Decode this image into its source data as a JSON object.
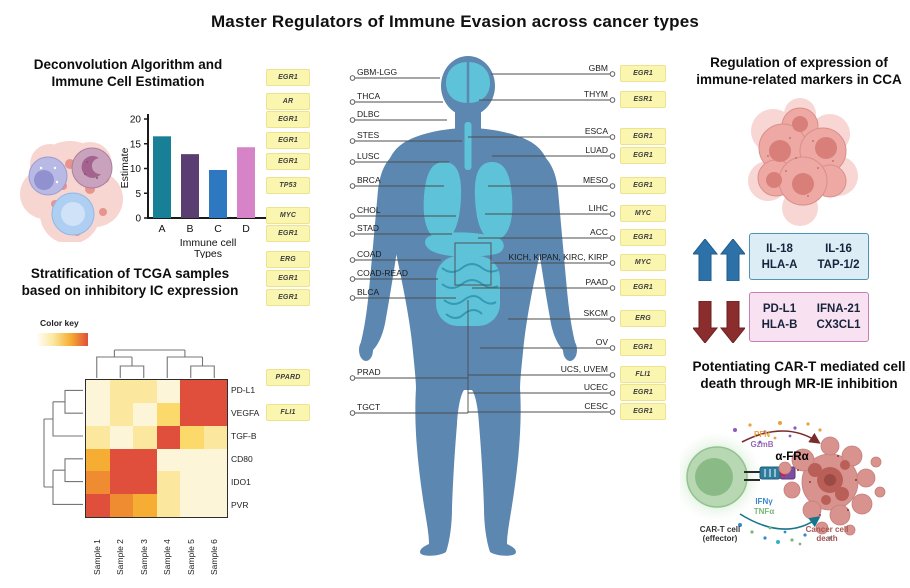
{
  "title": "Master Regulators of Immune Evasion across cancer types",
  "deconvolution": {
    "heading_line1": "Deconvolution Algorithm and",
    "heading_line2": "Immune Cell Estimation"
  },
  "stratification": {
    "heading_line1": "Stratification of TCGA samples",
    "heading_line2": "based on inhibitory IC expression",
    "color_key_label": "Color key"
  },
  "cca_panel": {
    "heading_line1": "Regulation of expression of",
    "heading_line2": "immune-related markers in CCA",
    "up_markers": [
      "IL-18",
      "IL-16",
      "HLA-A",
      "TAP-1/2"
    ],
    "down_markers": [
      "PD-L1",
      "IFNA-21",
      "HLA-B",
      "CX3CL1"
    ]
  },
  "cart_panel": {
    "heading_line1": "Potentiating CAR-T mediated cell",
    "heading_line2": "death through MR-IE inhibition",
    "labels": {
      "pfn": "PFN",
      "gzmb": "GzmB",
      "afra": "α-FRα",
      "ifng": "IFNγ",
      "tnfa": "TNFα",
      "cart_cell_line1": "CAR-T cell",
      "cart_cell_line2": "(effector)",
      "cancer_death_line1": "Cancer cell",
      "cancer_death_line2": "death"
    }
  },
  "body_map": {
    "left": [
      {
        "gene": "EGR1",
        "cancer": "GBM-LGG"
      },
      {
        "gene": "AR",
        "cancer": "THCA"
      },
      {
        "gene": "EGR1",
        "cancer": "DLBC"
      },
      {
        "gene": "EGR1",
        "cancer": "STES"
      },
      {
        "gene": "EGR1",
        "cancer": "LUSC"
      },
      {
        "gene": "TP53",
        "cancer": "BRCA"
      },
      {
        "gene": "MYC",
        "cancer": "CHOL"
      },
      {
        "gene": "EGR1",
        "cancer": "STAD"
      },
      {
        "gene": "ERG",
        "cancer": "COAD"
      },
      {
        "gene": "EGR1",
        "cancer": "COAD-READ"
      },
      {
        "gene": "EGR1",
        "cancer": "BLCA"
      },
      {
        "gene": "PPARD",
        "cancer": "PRAD"
      },
      {
        "gene": "FLI1",
        "cancer": "TGCT"
      }
    ],
    "right": [
      {
        "cancer": "GBM",
        "gene": "EGR1"
      },
      {
        "cancer": "THYM",
        "gene": "ESR1"
      },
      {
        "cancer": "ESCA",
        "gene": "EGR1"
      },
      {
        "cancer": "LUAD",
        "gene": "EGR1"
      },
      {
        "cancer": "MESO",
        "gene": "EGR1"
      },
      {
        "cancer": "LIHC",
        "gene": "MYC"
      },
      {
        "cancer": "ACC",
        "gene": "EGR1"
      },
      {
        "cancer": "KICH, KIPAN, KIRC, KIRP",
        "gene": "MYC"
      },
      {
        "cancer": "PAAD",
        "gene": "EGR1"
      },
      {
        "cancer": "SKCM",
        "gene": "ERG"
      },
      {
        "cancer": "OV",
        "gene": "EGR1"
      },
      {
        "cancer": "UCS, UVEM",
        "gene": "FLI1"
      },
      {
        "cancer": "UCEC",
        "gene": "EGR1"
      },
      {
        "cancer": "CESC",
        "gene": "EGR1"
      }
    ]
  },
  "colors": {
    "body_silhouette": "#5B87B0",
    "organs": "#5EC2D8",
    "gene_badge_bg": "#FBF6AF",
    "up_arrow": "#2D71A9",
    "down_arrow": "#8B2D2D",
    "up_box_bg": "#DDEDF5",
    "down_box_bg": "#F8E2F1"
  },
  "chart_data": [
    {
      "id": "immune_cell_estimate",
      "type": "bar",
      "title": "",
      "categories": [
        "A",
        "B",
        "C",
        "D"
      ],
      "values": [
        16.5,
        12.9,
        9.7,
        14.3
      ],
      "colors": [
        "#177F96",
        "#5A3D71",
        "#2E78C2",
        "#D783C8"
      ],
      "xlabel": "Immune cell Types",
      "xlabel_lines": [
        "Immune cell",
        "Types"
      ],
      "ylabel": "Estimate",
      "ylim": [
        0,
        20
      ],
      "yticks": [
        0,
        5,
        10,
        15,
        20
      ],
      "grid": false,
      "legend": "none"
    },
    {
      "id": "ic_expression_heatmap",
      "type": "heatmap",
      "rows": [
        "PD-L1",
        "VEGFA",
        "TGF-B",
        "CD80",
        "IDO1",
        "PVR"
      ],
      "columns": [
        "Sample 1",
        "Sample 2",
        "Sample 3",
        "Sample 4",
        "Sample 5",
        "Sample 6"
      ],
      "palette": {
        "cream": "#FDF5D7",
        "pale": "#FBE89E",
        "yellow": "#FBD96B",
        "gold": "#F5AE33",
        "orange": "#EF8B30",
        "red": "#DF4F3B"
      },
      "cells": [
        [
          "cream",
          "pale",
          "pale",
          "cream",
          "red",
          "red"
        ],
        [
          "cream",
          "pale",
          "cream",
          "yellow",
          "red",
          "red"
        ],
        [
          "pale",
          "cream",
          "pale",
          "red",
          "yellow",
          "pale"
        ],
        [
          "gold",
          "red",
          "red",
          "cream",
          "cream",
          "cream"
        ],
        [
          "orange",
          "red",
          "red",
          "pale",
          "cream",
          "cream"
        ],
        [
          "red",
          "orange",
          "gold",
          "pale",
          "cream",
          "cream"
        ]
      ],
      "color_key_gradient": [
        "#FFFFFF",
        "#FBE89E",
        "#F5AE33",
        "#DF4F3B"
      ],
      "legend_label": "Color key",
      "row_dendrogram": true,
      "column_dendrogram": true
    }
  ]
}
